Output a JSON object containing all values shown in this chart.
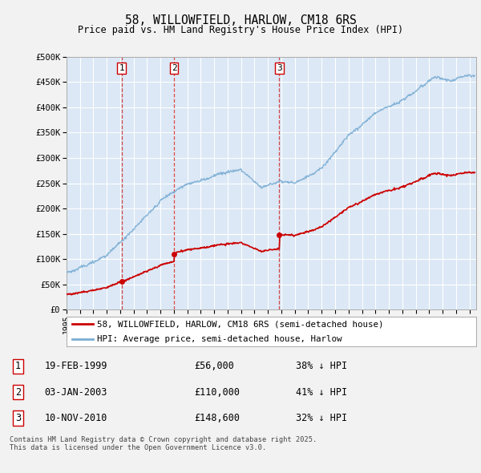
{
  "title": "58, WILLOWFIELD, HARLOW, CM18 6RS",
  "subtitle": "Price paid vs. HM Land Registry's House Price Index (HPI)",
  "ytick_values": [
    0,
    50000,
    100000,
    150000,
    200000,
    250000,
    300000,
    350000,
    400000,
    450000,
    500000
  ],
  "ylim": [
    0,
    500000
  ],
  "xlim_start": 1995.0,
  "xlim_end": 2025.5,
  "plot_bg_color": "#dce8f5",
  "grid_color": "#ffffff",
  "sale_color": "#cc0000",
  "hpi_color": "#7aadd4",
  "sale_label": "58, WILLOWFIELD, HARLOW, CM18 6RS (semi-detached house)",
  "hpi_label": "HPI: Average price, semi-detached house, Harlow",
  "transactions": [
    {
      "num": 1,
      "date": "19-FEB-1999",
      "price": 56000,
      "year": 1999.12,
      "pct": "38% ↓ HPI"
    },
    {
      "num": 2,
      "date": "03-JAN-2003",
      "price": 110000,
      "year": 2003.01,
      "pct": "41% ↓ HPI"
    },
    {
      "num": 3,
      "date": "10-NOV-2010",
      "price": 148600,
      "year": 2010.85,
      "pct": "32% ↓ HPI"
    }
  ],
  "footer": "Contains HM Land Registry data © Crown copyright and database right 2025.\nThis data is licensed under the Open Government Licence v3.0.",
  "xtick_years": [
    1995,
    1996,
    1997,
    1998,
    1999,
    2000,
    2001,
    2002,
    2003,
    2004,
    2005,
    2006,
    2007,
    2008,
    2009,
    2010,
    2011,
    2012,
    2013,
    2014,
    2015,
    2016,
    2017,
    2018,
    2019,
    2020,
    2021,
    2022,
    2023,
    2024,
    2025
  ]
}
